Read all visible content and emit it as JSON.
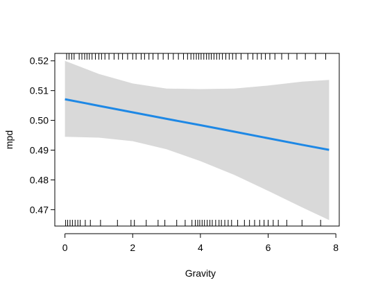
{
  "chart_data": {
    "type": "line",
    "title": "",
    "xlabel": "Gravity",
    "ylabel": "mpd",
    "xlim": [
      -0.3,
      8.1
    ],
    "ylim": [
      0.4645,
      0.5225
    ],
    "x_ticks": [
      0,
      2,
      4,
      6,
      8
    ],
    "x_tick_labels": [
      "0",
      "2",
      "4",
      "6",
      "8"
    ],
    "y_ticks": [
      0.47,
      0.48,
      0.49,
      0.5,
      0.51,
      0.52
    ],
    "y_tick_labels": [
      "0.47",
      "0.48",
      "0.49",
      "0.50",
      "0.51",
      "0.52"
    ],
    "grid": false,
    "line_color": "#1E88E5",
    "band_color": "#D9D9D9",
    "series": [
      {
        "x": [
          0.0,
          1.0,
          2.0,
          3.0,
          4.0,
          5.0,
          6.0,
          7.0,
          7.8
        ],
        "fit": [
          0.5071,
          0.5049,
          0.5027,
          0.5005,
          0.4984,
          0.4962,
          0.494,
          0.4918,
          0.4901
        ],
        "upper": [
          0.52,
          0.5156,
          0.5124,
          0.5107,
          0.5105,
          0.5107,
          0.5117,
          0.513,
          0.5136
        ],
        "lower": [
          0.4945,
          0.4942,
          0.493,
          0.4903,
          0.4863,
          0.4817,
          0.4763,
          0.4708,
          0.4665
        ]
      }
    ],
    "rug_top_x": [
      0.05,
      0.12,
      0.2,
      0.27,
      0.42,
      0.5,
      0.58,
      0.65,
      0.72,
      0.8,
      0.9,
      1.0,
      1.08,
      1.18,
      1.3,
      1.45,
      1.58,
      1.7,
      1.85,
      2.0,
      2.1,
      2.25,
      2.35,
      2.48,
      2.6,
      2.75,
      2.9,
      3.05,
      3.2,
      3.35,
      3.5,
      3.62,
      3.72,
      3.8,
      3.88,
      3.95,
      4.02,
      4.1,
      4.18,
      4.25,
      4.32,
      4.4,
      4.48,
      4.56,
      4.65,
      4.75,
      4.85,
      4.95,
      5.05,
      5.2,
      5.4,
      5.55,
      5.68,
      5.8,
      5.92,
      6.05,
      6.2,
      6.4,
      6.6,
      6.85,
      7.1,
      7.4,
      7.7
    ],
    "rug_bottom_x": [
      0.02,
      0.08,
      0.15,
      0.22,
      0.3,
      0.38,
      0.45,
      0.6,
      0.75,
      1.05,
      1.55,
      1.95,
      2.05,
      2.4,
      2.75,
      2.95,
      3.3,
      3.55,
      3.75,
      3.85,
      3.92,
      3.98,
      4.05,
      4.12,
      4.2,
      4.28,
      4.35,
      4.45,
      4.55,
      4.62,
      4.72,
      4.82,
      4.92,
      5.1,
      5.3,
      5.45,
      5.6,
      5.75,
      5.88,
      6.0,
      6.15,
      6.3,
      6.55,
      7.0,
      7.55
    ]
  }
}
